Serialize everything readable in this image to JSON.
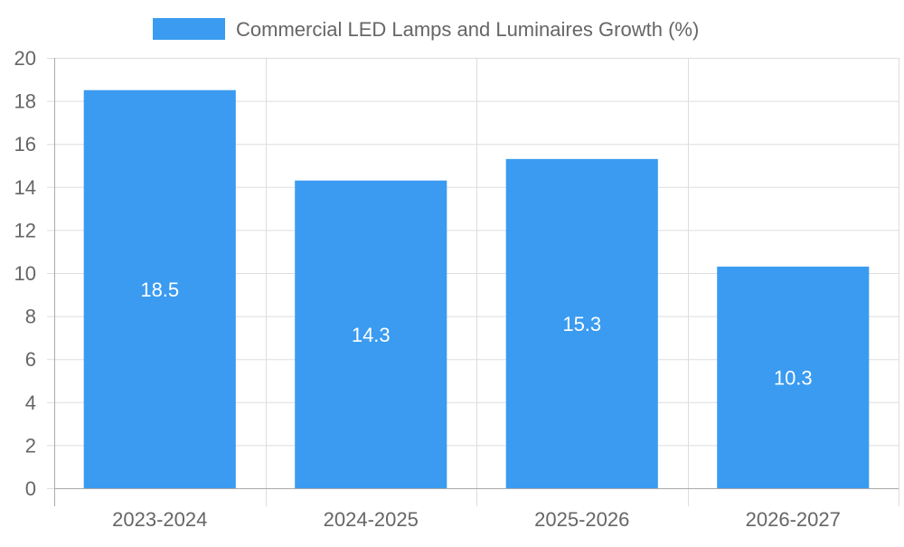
{
  "chart_data": {
    "type": "bar",
    "title": "",
    "xlabel": "",
    "ylabel": "",
    "categories": [
      "2023-2024",
      "2024-2025",
      "2025-2026",
      "2026-2027"
    ],
    "series": [
      {
        "name": "Commercial LED Lamps and Luminaires Growth (%)",
        "values": [
          18.5,
          14.3,
          15.3,
          10.3
        ],
        "color": "#3a9bf0"
      }
    ],
    "data_labels": [
      "18.5",
      "14.3",
      "15.3",
      "10.3"
    ],
    "ylim": [
      0,
      20
    ],
    "yticks": [
      0,
      2,
      4,
      6,
      8,
      10,
      12,
      14,
      16,
      18,
      20
    ],
    "grid": true,
    "legend_position": "top-center"
  },
  "colors": {
    "bar": "#3a9bf0",
    "grid": "#dddddd",
    "axis": "#aaaaaa",
    "tick_text": "#666666",
    "label_text": "#ffffff"
  }
}
